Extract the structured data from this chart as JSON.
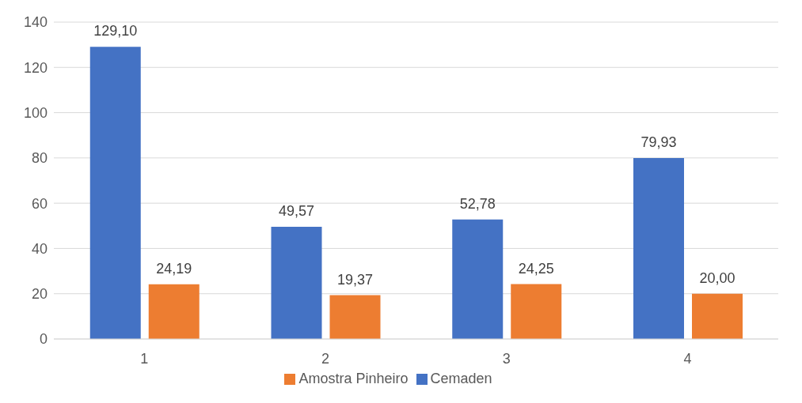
{
  "chart_data": {
    "type": "bar",
    "categories": [
      "1",
      "2",
      "3",
      "4"
    ],
    "series": [
      {
        "name": "Cemaden",
        "color": "#4472c4",
        "values": [
          129.1,
          49.57,
          52.78,
          79.93
        ],
        "value_labels": [
          "129,10",
          "49,57",
          "52,78",
          "79,93"
        ]
      },
      {
        "name": "Amostra Pinheiro",
        "color": "#ed7d31",
        "values": [
          24.19,
          19.37,
          24.25,
          20.0
        ],
        "value_labels": [
          "24,19",
          "19,37",
          "24,25",
          "20,00"
        ]
      }
    ],
    "ylim": [
      0,
      140
    ],
    "yticks": [
      0,
      20,
      40,
      60,
      80,
      100,
      120,
      140
    ],
    "grid": "y",
    "legend": "bottom"
  }
}
